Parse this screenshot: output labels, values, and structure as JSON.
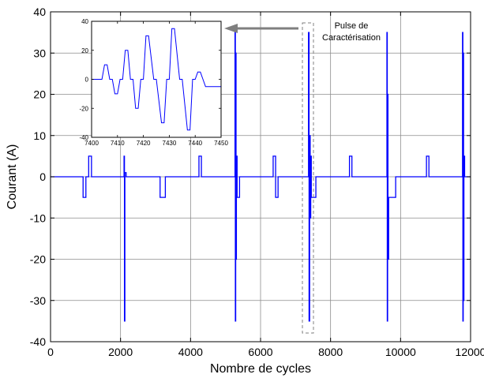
{
  "chart_data": [
    {
      "type": "line",
      "title": "",
      "xlabel": "Nombre de cycles",
      "ylabel": "Courant (A)",
      "xlim": [
        0,
        12000
      ],
      "ylim": [
        -40,
        40
      ],
      "xticks": [
        0,
        2000,
        4000,
        6000,
        8000,
        10000,
        12000
      ],
      "yticks": [
        -40,
        -30,
        -20,
        -10,
        0,
        10,
        20,
        30,
        40
      ],
      "grid": true,
      "series": [
        {
          "color": "#0000ff",
          "x": [
            0,
            930,
            930,
            1010,
            1010,
            1090,
            1090,
            1170,
            1170,
            2100,
            2100,
            2112,
            2112,
            2124,
            2124,
            2160,
            2160,
            3130,
            3130,
            3280,
            3280,
            4240,
            4240,
            4310,
            4310,
            5270,
            5270,
            5280,
            5280,
            5290,
            5290,
            5300,
            5300,
            5310,
            5310,
            5330,
            5330,
            5400,
            5400,
            6360,
            6360,
            6430,
            6430,
            6500,
            6500,
            7370,
            7370,
            7386,
            7386,
            7402,
            7402,
            7418,
            7418,
            7434,
            7434,
            7450,
            7450,
            7580,
            7580,
            8540,
            8540,
            8610,
            8610,
            9610,
            9610,
            9620,
            9620,
            9630,
            9630,
            9640,
            9640,
            9660,
            9660,
            9860,
            9860,
            10740,
            10740,
            10810,
            10810,
            11770,
            11770,
            11780,
            11780,
            11790,
            11790,
            11800,
            11800,
            11810,
            11810,
            11830,
            11830,
            12000
          ],
          "y": [
            0,
            0,
            -5,
            -5,
            0,
            0,
            5,
            5,
            0,
            0,
            5,
            5,
            -35,
            -35,
            1,
            1,
            0,
            0,
            -5,
            -5,
            0,
            0,
            5,
            5,
            0,
            0,
            35,
            35,
            -35,
            -35,
            30,
            30,
            -20,
            -20,
            5,
            5,
            -5,
            -5,
            0,
            0,
            5,
            5,
            -5,
            -5,
            0,
            0,
            35,
            35,
            -35,
            -35,
            10,
            10,
            -10,
            -10,
            5,
            5,
            -5,
            -5,
            0,
            0,
            5,
            5,
            0,
            0,
            35,
            35,
            -35,
            -35,
            20,
            20,
            -20,
            -20,
            -5,
            -5,
            0,
            0,
            5,
            5,
            0,
            0,
            35,
            35,
            -35,
            -35,
            30,
            30,
            -30,
            -30,
            5,
            5,
            0,
            0
          ]
        }
      ],
      "annotation": {
        "text_line1": "Pulse de",
        "text_line2": "Caractérisation"
      }
    },
    {
      "type": "line",
      "title": "",
      "xlabel": "",
      "ylabel": "",
      "xlim": [
        7400,
        7450
      ],
      "ylim": [
        -40,
        40
      ],
      "xticks": [
        7400,
        7410,
        7420,
        7430,
        7440,
        7450
      ],
      "yticks": [
        -40,
        -20,
        0,
        20,
        40
      ],
      "grid": false,
      "series": [
        {
          "color": "#0000ff",
          "x": [
            7400,
            7404,
            7405,
            7406,
            7407,
            7408,
            7409,
            7410,
            7411,
            7412,
            7413,
            7414,
            7415,
            7416,
            7417,
            7418,
            7419,
            7420,
            7421,
            7422,
            7424,
            7425,
            7427,
            7428,
            7429,
            7430,
            7431,
            7432,
            7434,
            7435,
            7437,
            7438,
            7439,
            7440,
            7441,
            7442,
            7443,
            7444,
            7450
          ],
          "y": [
            0,
            0,
            10,
            10,
            0,
            0,
            -10,
            -10,
            0,
            0,
            20,
            20,
            0,
            0,
            -20,
            -20,
            0,
            0,
            30,
            30,
            0,
            0,
            -30,
            -30,
            0,
            0,
            35,
            35,
            0,
            0,
            -35,
            -35,
            0,
            0,
            5,
            5,
            0,
            -5,
            -5
          ]
        }
      ]
    }
  ]
}
